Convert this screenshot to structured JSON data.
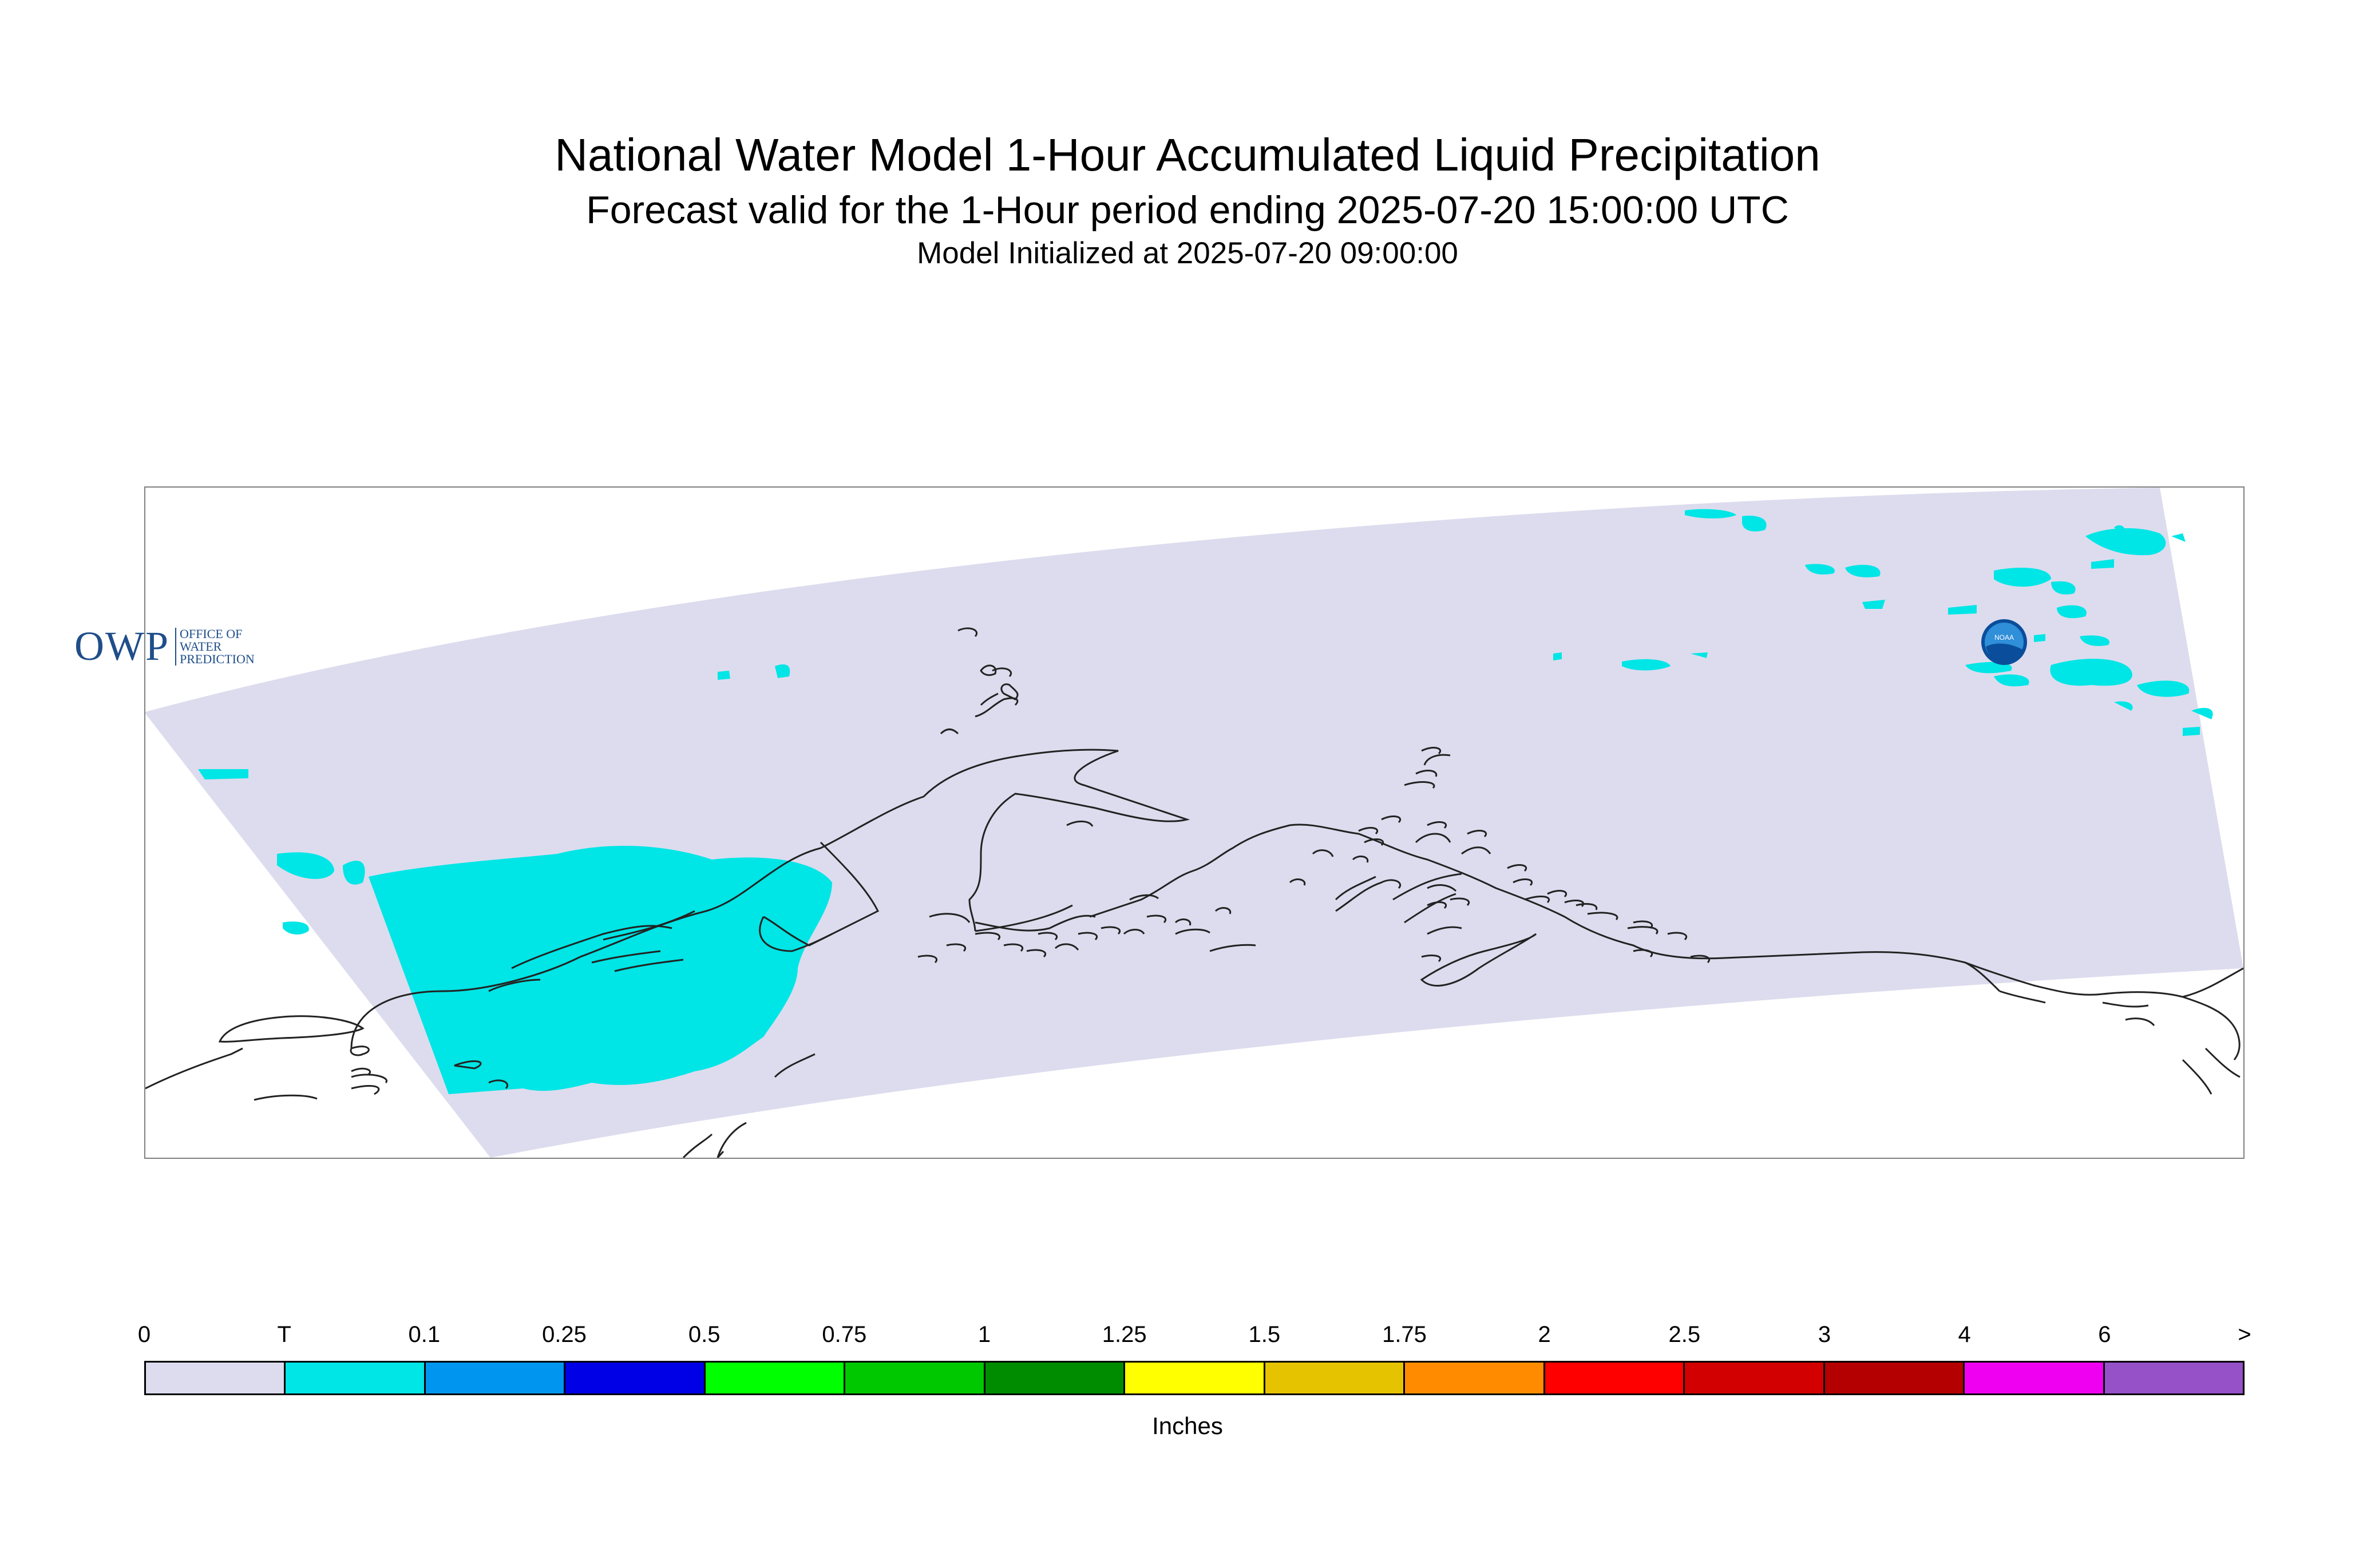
{
  "title": "National Water Model 1-Hour Accumulated Liquid Precipitation",
  "subtitle": "Forecast valid for the 1-Hour period ending 2025-07-20 15:00:00 UTC",
  "init_line": "Model Initialized at 2025-07-20 09:00:00",
  "logos": {
    "owp_big": "OWP",
    "owp_small": "OFFICE OF WATER PREDICTION",
    "noaa": "NOAA"
  },
  "legend": {
    "units": "Inches",
    "tick_labels": [
      "0",
      "T",
      "0.1",
      "0.25",
      "0.5",
      "0.75",
      "1",
      "1.25",
      "1.5",
      "1.75",
      "2",
      "2.5",
      "3",
      "4",
      "6",
      ">"
    ],
    "colors": [
      "#dcdcee",
      "#00e5e5",
      "#0096f0",
      "#0000e6",
      "#00ff00",
      "#00c800",
      "#008c00",
      "#ffff00",
      "#e6c300",
      "#ff8c00",
      "#ff0000",
      "#d20000",
      "#b40000",
      "#f000f0",
      "#9650c8"
    ]
  },
  "colors": {
    "domain_fill": "#dcdcee",
    "trace_precip": "#00e5e5",
    "coastline": "#222222",
    "frame": "#808080"
  }
}
